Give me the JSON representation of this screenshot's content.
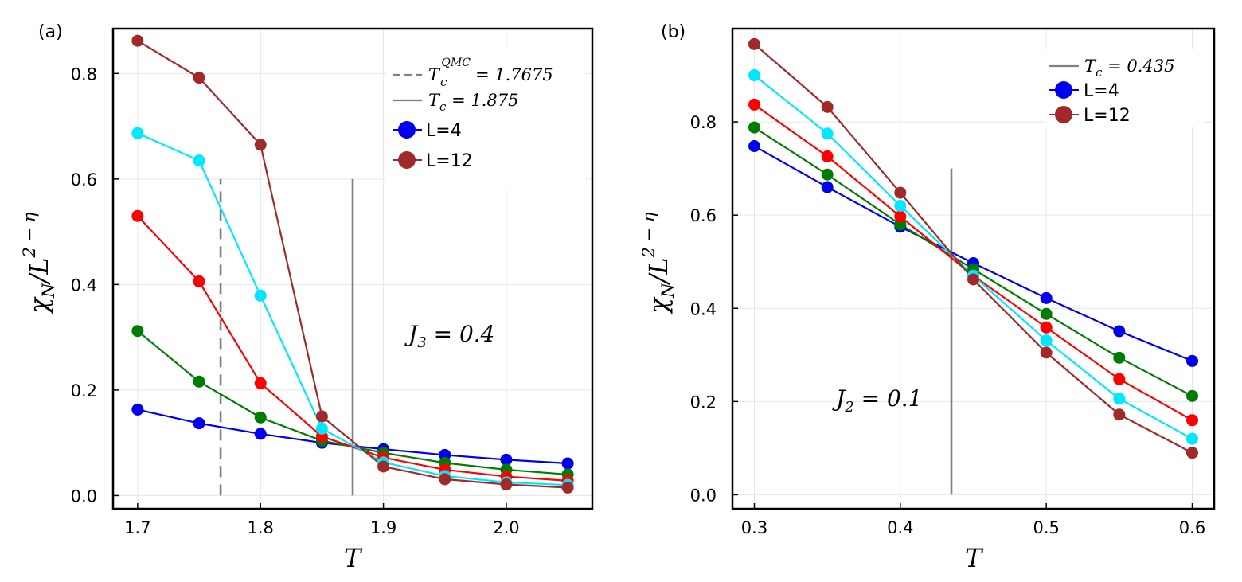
{
  "chart_data": [
    {
      "panel_label": "(a)",
      "type": "line",
      "xlabel": "T",
      "ylabel": "χN/L2−η",
      "xlim": [
        1.68,
        2.07
      ],
      "ylim": [
        -0.025,
        0.885
      ],
      "xticks": [
        1.7,
        1.8,
        1.9,
        2.0
      ],
      "xtick_labels": [
        "1.7",
        "1.8",
        "1.9",
        "2.0"
      ],
      "yticks": [
        0.0,
        0.2,
        0.4,
        0.6,
        0.8
      ],
      "ytick_labels": [
        "0.0",
        "0.2",
        "0.4",
        "0.6",
        "0.8"
      ],
      "grid": true,
      "legend_position": "top-right",
      "annotation": "J3 = 0.4",
      "vlines": [
        {
          "x": 1.7675,
          "style": "dashed",
          "color": "#808080",
          "y_range": [
            0,
            0.6
          ],
          "label": "Tc QMC = 1.7675"
        },
        {
          "x": 1.875,
          "style": "solid",
          "color": "#808080",
          "y_range": [
            0,
            0.6
          ],
          "label": "Tc = 1.875"
        }
      ],
      "x": [
        1.7,
        1.75,
        1.8,
        1.85,
        1.9,
        1.95,
        2.0,
        2.05
      ],
      "series": [
        {
          "name": "L=4",
          "color": "#0000ee",
          "values": [
            0.163,
            0.137,
            0.117,
            0.1,
            0.088,
            0.077,
            0.068,
            0.061
          ]
        },
        {
          "color": "#007d00",
          "values": [
            0.312,
            0.216,
            0.148,
            0.104,
            0.081,
            0.062,
            0.049,
            0.04
          ]
        },
        {
          "color": "#ff0000",
          "values": [
            0.53,
            0.406,
            0.213,
            0.112,
            0.072,
            0.049,
            0.036,
            0.028
          ]
        },
        {
          "color": "#00e8ff",
          "values": [
            0.687,
            0.635,
            0.379,
            0.127,
            0.063,
            0.037,
            0.025,
            0.02
          ]
        },
        {
          "name": "L=12",
          "color": "#a02a2a",
          "values": [
            0.862,
            0.792,
            0.665,
            0.15,
            0.055,
            0.031,
            0.021,
            0.015
          ]
        }
      ]
    },
    {
      "panel_label": "(b)",
      "type": "line",
      "xlabel": "T",
      "ylabel": "χN/L2−η",
      "xlim": [
        0.285,
        0.615
      ],
      "ylim": [
        -0.03,
        1.0
      ],
      "xticks": [
        0.3,
        0.4,
        0.5,
        0.6
      ],
      "xtick_labels": [
        "0.3",
        "0.4",
        "0.5",
        "0.6"
      ],
      "yticks": [
        0.0,
        0.2,
        0.4,
        0.6,
        0.8
      ],
      "ytick_labels": [
        "0.0",
        "0.2",
        "0.4",
        "0.6",
        "0.8"
      ],
      "grid": true,
      "legend_position": "top-right",
      "annotation": "J2 = 0.1",
      "vlines": [
        {
          "x": 0.435,
          "style": "solid",
          "color": "#808080",
          "y_range": [
            0,
            0.7
          ],
          "label": "Tc = 0.435"
        }
      ],
      "x": [
        0.3,
        0.35,
        0.4,
        0.45,
        0.5,
        0.55,
        0.6
      ],
      "series": [
        {
          "name": "L=4",
          "color": "#0000ee",
          "values": [
            0.748,
            0.66,
            0.575,
            0.497,
            0.422,
            0.351,
            0.287
          ]
        },
        {
          "color": "#007d00",
          "values": [
            0.788,
            0.687,
            0.58,
            0.484,
            0.388,
            0.294,
            0.212
          ]
        },
        {
          "color": "#ff0000",
          "values": [
            0.837,
            0.726,
            0.597,
            0.47,
            0.359,
            0.248,
            0.16
          ]
        },
        {
          "color": "#00e8ff",
          "values": [
            0.9,
            0.775,
            0.62,
            0.47,
            0.331,
            0.206,
            0.12
          ]
        },
        {
          "name": "L=12",
          "color": "#a02a2a",
          "values": [
            0.967,
            0.832,
            0.648,
            0.462,
            0.305,
            0.172,
            0.09
          ]
        }
      ]
    }
  ]
}
